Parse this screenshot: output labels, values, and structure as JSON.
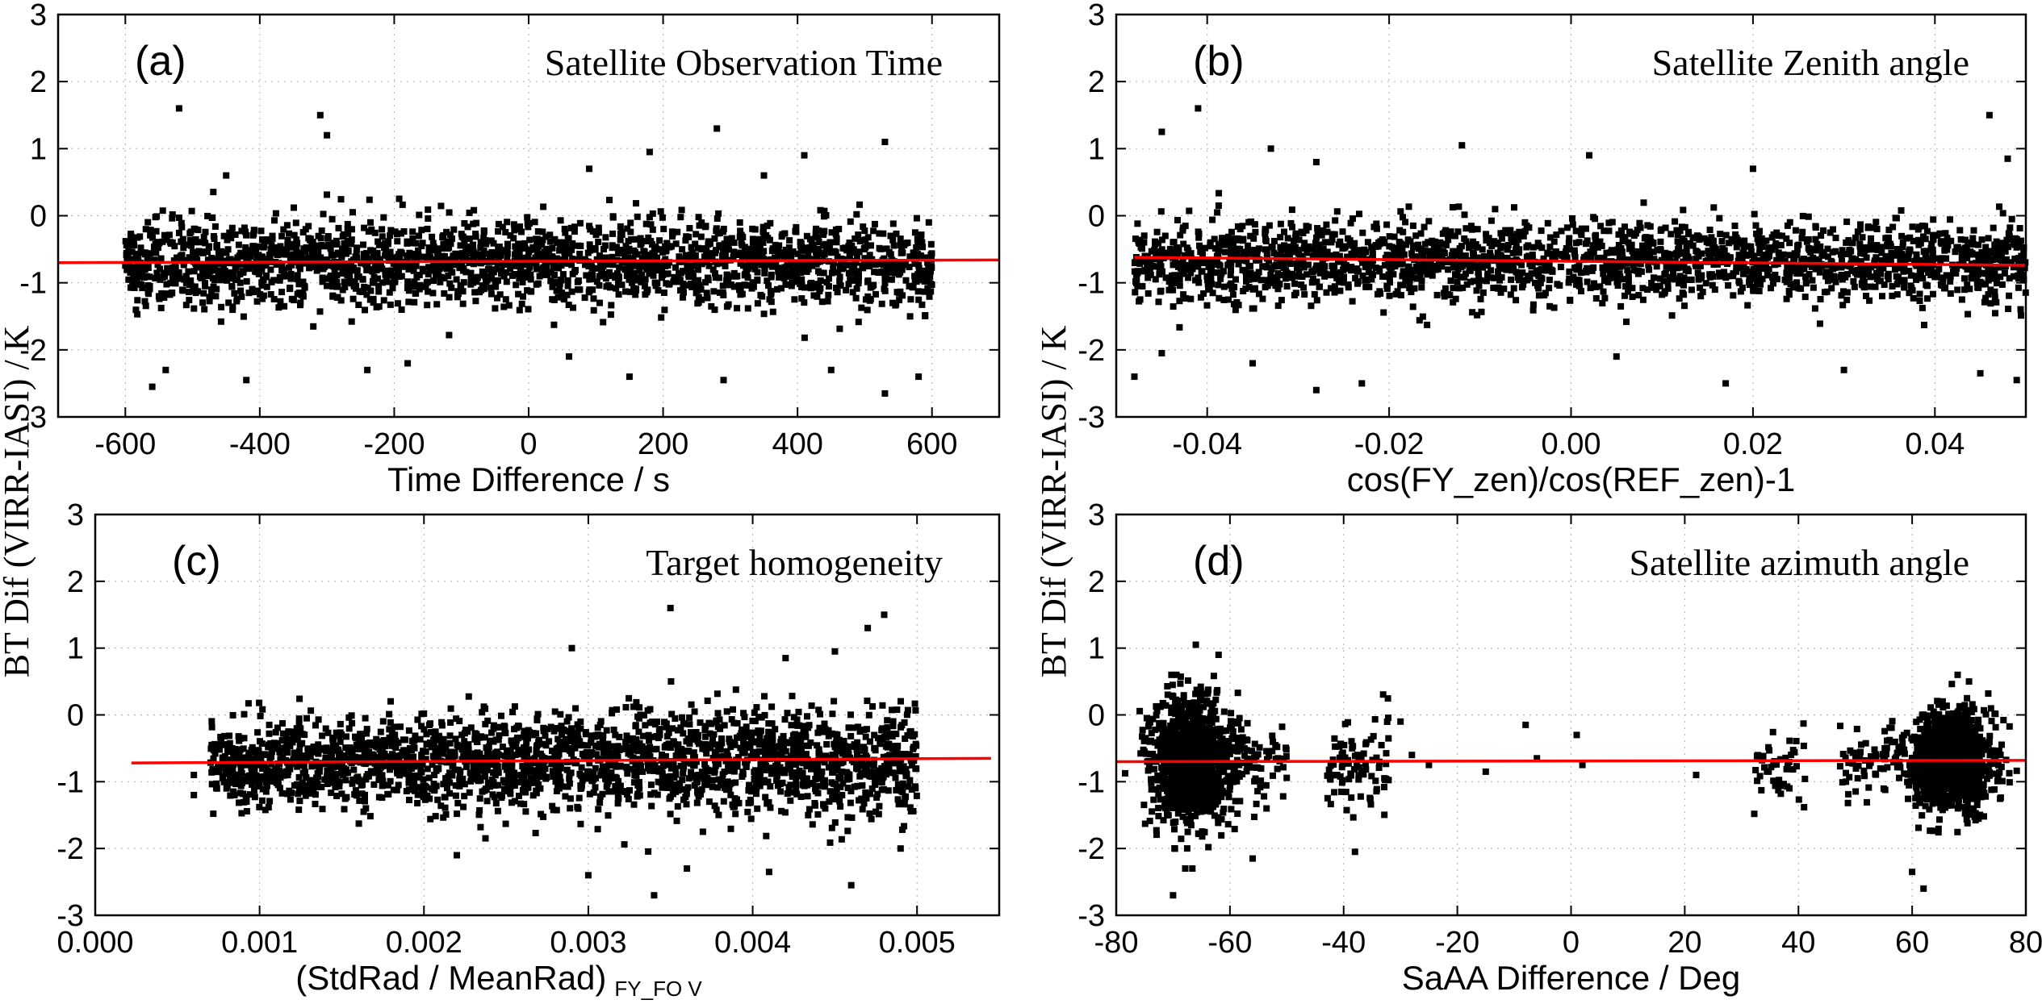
{
  "figure": {
    "ylabel": "BT Dif (VIRR-IASI) / K"
  },
  "chart_data": [
    {
      "id": "a",
      "type": "scatter",
      "panel_letter": "(a)",
      "title": "Satellite Observation Time",
      "xlabel": "Time Difference / s",
      "xlabel_sub": "",
      "ylabel": "BT Dif (VIRR-IASI) / K",
      "xlim": [
        -700,
        700
      ],
      "ylim": [
        -3,
        3
      ],
      "xticks": [
        -600,
        -400,
        -200,
        0,
        200,
        400,
        600
      ],
      "xtick_labels": [
        "-600",
        "-400",
        "-200",
        "0",
        "200",
        "400",
        "600"
      ],
      "yticks": [
        -3,
        -2,
        -1,
        0,
        1,
        2,
        3
      ],
      "ytick_labels": [
        "-3",
        "-2",
        "-1",
        "0",
        "1",
        "2",
        "3"
      ],
      "grid": true,
      "series": [
        {
          "name": "matchups",
          "distribution": "uniform",
          "x_range": [
            -600,
            600
          ],
          "mean": -0.7,
          "std": 0.32,
          "count": 2200
        },
        {
          "name": "linear fit",
          "kind": "line",
          "x": [
            -700,
            700
          ],
          "y": [
            -0.7,
            -0.66
          ],
          "color": "#ff0000"
        }
      ],
      "outliers": [
        [
          -520,
          1.6
        ],
        [
          -310,
          1.5
        ],
        [
          -300,
          1.2
        ],
        [
          280,
          1.3
        ],
        [
          530,
          1.1
        ],
        [
          410,
          0.9
        ],
        [
          180,
          0.95
        ],
        [
          -450,
          0.6
        ],
        [
          90,
          0.7
        ],
        [
          350,
          0.6
        ],
        [
          -560,
          -2.55
        ],
        [
          -420,
          -2.45
        ],
        [
          -540,
          -2.3
        ],
        [
          -240,
          -2.3
        ],
        [
          150,
          -2.4
        ],
        [
          290,
          -2.45
        ],
        [
          530,
          -2.65
        ],
        [
          580,
          -2.4
        ],
        [
          -180,
          -2.2
        ],
        [
          60,
          -2.1
        ],
        [
          450,
          -2.3
        ]
      ]
    },
    {
      "id": "b",
      "type": "scatter",
      "panel_letter": "(b)",
      "title": "Satellite Zenith angle",
      "xlabel": "cos(FY_zen)/cos(REF_zen)-1",
      "xlabel_sub": "",
      "ylabel": "BT Dif (VIRR-IASI) / K",
      "xlim": [
        -0.05,
        0.05
      ],
      "ylim": [
        -3,
        3
      ],
      "xticks": [
        -0.04,
        -0.02,
        0.0,
        0.02,
        0.04
      ],
      "xtick_labels": [
        "-0.04",
        "-0.02",
        "0.00",
        "0.02",
        "0.04"
      ],
      "yticks": [
        -3,
        -2,
        -1,
        0,
        1,
        2,
        3
      ],
      "ytick_labels": [
        "-3",
        "-2",
        "-1",
        "0",
        "1",
        "2",
        "3"
      ],
      "grid": true,
      "series": [
        {
          "name": "matchups",
          "distribution": "uniform",
          "x_range": [
            -0.048,
            0.05
          ],
          "mean": -0.68,
          "std": 0.3,
          "count": 2200
        },
        {
          "name": "linear fit",
          "kind": "line",
          "x": [
            -0.048,
            0.05
          ],
          "y": [
            -0.62,
            -0.74
          ],
          "color": "#ff0000"
        }
      ],
      "outliers": [
        [
          -0.041,
          1.6
        ],
        [
          -0.045,
          1.25
        ],
        [
          0.046,
          1.5
        ],
        [
          -0.012,
          1.05
        ],
        [
          -0.033,
          1.0
        ],
        [
          0.002,
          0.9
        ],
        [
          0.048,
          0.85
        ],
        [
          -0.028,
          0.8
        ],
        [
          0.02,
          0.7
        ],
        [
          -0.048,
          -2.4
        ],
        [
          -0.045,
          -2.05
        ],
        [
          -0.028,
          -2.6
        ],
        [
          -0.023,
          -2.5
        ],
        [
          0.017,
          -2.5
        ],
        [
          0.03,
          -2.3
        ],
        [
          0.045,
          -2.35
        ],
        [
          0.049,
          -2.45
        ],
        [
          -0.035,
          -2.2
        ],
        [
          0.005,
          -2.1
        ]
      ]
    },
    {
      "id": "c",
      "type": "scatter",
      "panel_letter": "(c)",
      "title": "Target homogeneity",
      "xlabel": "(StdRad / MeanRad)",
      "xlabel_sub": "FY_FO V",
      "ylabel": "BT Dif (VIRR-IASI) / K",
      "xlim": [
        0.0,
        0.0055
      ],
      "ylim": [
        -3,
        3
      ],
      "xticks": [
        0.0,
        0.001,
        0.002,
        0.003,
        0.004,
        0.005
      ],
      "xtick_labels": [
        "0.000",
        "0.001",
        "0.002",
        "0.003",
        "0.004",
        "0.005"
      ],
      "yticks": [
        -3,
        -2,
        -1,
        0,
        1,
        2,
        3
      ],
      "ytick_labels": [
        "-3",
        "-2",
        "-1",
        "0",
        "1",
        "2",
        "3"
      ],
      "grid": true,
      "series": [
        {
          "name": "matchups",
          "distribution": "uniform",
          "x_range": [
            0.0007,
            0.005
          ],
          "mean": -0.7,
          "std": 0.3,
          "std_growth": 0.12,
          "count": 2400
        },
        {
          "name": "linear fit",
          "kind": "line",
          "x": [
            0.00022,
            0.00545
          ],
          "y": [
            -0.72,
            -0.65
          ],
          "color": "#ff0000"
        }
      ],
      "outliers": [
        [
          0.0035,
          1.6
        ],
        [
          0.0048,
          1.5
        ],
        [
          0.0047,
          1.3
        ],
        [
          0.0029,
          1.0
        ],
        [
          0.0045,
          0.95
        ],
        [
          0.0042,
          0.85
        ],
        [
          0.0006,
          -0.9
        ],
        [
          0.0006,
          -1.2
        ],
        [
          0.0034,
          -2.7
        ],
        [
          0.0041,
          -2.35
        ],
        [
          0.0046,
          -2.55
        ],
        [
          0.003,
          -2.4
        ],
        [
          0.0049,
          -2.0
        ],
        [
          0.0036,
          -2.3
        ],
        [
          0.0022,
          -2.1
        ]
      ]
    },
    {
      "id": "d",
      "type": "scatter",
      "panel_letter": "(d)",
      "title": "Satellite azimuth angle",
      "xlabel": "SaAA Difference / Deg",
      "xlabel_sub": "",
      "ylabel": "BT Dif (VIRR-IASI) / K",
      "xlim": [
        -80,
        80
      ],
      "ylim": [
        -3,
        3
      ],
      "xticks": [
        -80,
        -60,
        -40,
        -20,
        0,
        20,
        40,
        60,
        80
      ],
      "xtick_labels": [
        "-80",
        "-60",
        "-40",
        "-20",
        "0",
        "20",
        "40",
        "60",
        "80"
      ],
      "yticks": [
        -3,
        -2,
        -1,
        0,
        1,
        2,
        3
      ],
      "ytick_labels": [
        "-3",
        "-2",
        "-1",
        "0",
        "1",
        "2",
        "3"
      ],
      "grid": true,
      "series": [
        {
          "name": "cluster near -67",
          "distribution": "gaussian",
          "x_center": -67,
          "x_std": 3.6,
          "mean": -0.7,
          "std": 0.48,
          "count": 1100
        },
        {
          "name": "cluster near -55",
          "distribution": "uniform",
          "x_range": [
            -60,
            -50
          ],
          "mean": -0.75,
          "std": 0.35,
          "count": 70
        },
        {
          "name": "cluster near -38",
          "distribution": "uniform",
          "x_range": [
            -43,
            -32
          ],
          "mean": -0.75,
          "std": 0.4,
          "count": 90
        },
        {
          "name": "cluster near 36",
          "distribution": "uniform",
          "x_range": [
            32,
            42
          ],
          "mean": -0.8,
          "std": 0.3,
          "count": 45
        },
        {
          "name": "cluster near 52",
          "distribution": "uniform",
          "x_range": [
            47,
            58
          ],
          "mean": -0.72,
          "std": 0.3,
          "count": 60
        },
        {
          "name": "cluster near 67",
          "distribution": "gaussian",
          "x_center": 67,
          "x_std": 3.6,
          "mean": -0.68,
          "std": 0.35,
          "count": 1100
        },
        {
          "name": "linear fit",
          "kind": "line",
          "x": [
            -80,
            80
          ],
          "y": [
            -0.7,
            -0.68
          ],
          "color": "#ff0000"
        }
      ],
      "outliers": [
        [
          -28,
          -0.6
        ],
        [
          -25,
          -0.75
        ],
        [
          -15,
          -0.85
        ],
        [
          -8,
          -0.15
        ],
        [
          -6,
          -0.65
        ],
        [
          1,
          -0.3
        ],
        [
          2,
          -0.75
        ],
        [
          22,
          -0.9
        ],
        [
          -30,
          -0.1
        ],
        [
          -66,
          1.05
        ],
        [
          -62,
          0.9
        ],
        [
          -38,
          -2.05
        ],
        [
          -70,
          -2.7
        ],
        [
          -56,
          -2.15
        ],
        [
          62,
          -2.6
        ],
        [
          60,
          -2.35
        ],
        [
          68,
          0.6
        ],
        [
          70,
          0.5
        ]
      ]
    }
  ]
}
